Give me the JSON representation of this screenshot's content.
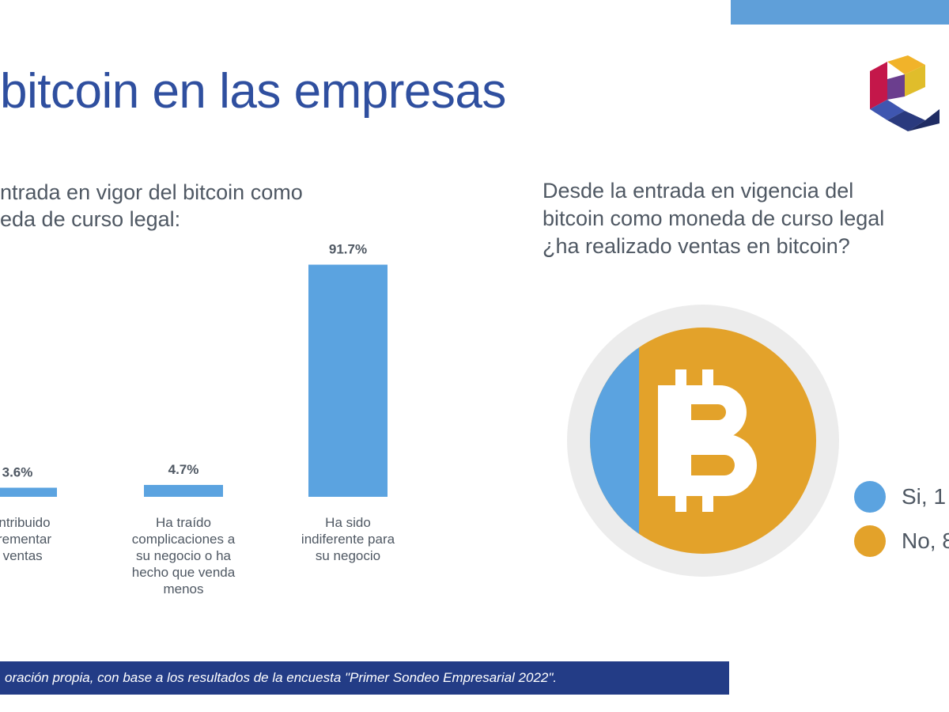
{
  "header": {
    "title": "bitcoin en las empresas"
  },
  "left_chart": {
    "question_lines": [
      "ntrada en vigor del bitcoin como",
      "eda de curso legal:"
    ]
  },
  "right_chart": {
    "question_lines": [
      "Desde la entrada en vigencia del",
      "bitcoin como moneda de curso legal",
      "¿ha realizado ventas en bitcoin?"
    ]
  },
  "chart_data": [
    {
      "type": "bar",
      "categories": [
        "Ha contribuido a incrementar sus ventas",
        "Ha traído complicaciones a su negocio o ha hecho que venda menos",
        "Ha sido indiferente para su negocio"
      ],
      "category_label_lines": [
        [
          "contribuido",
          "ncrementar",
          "s ventas"
        ],
        [
          "Ha traído",
          "complicaciones a",
          "su negocio o ha",
          "hecho que venda",
          "menos"
        ],
        [
          "Ha sido",
          "indiferente para",
          "su negocio"
        ]
      ],
      "values": [
        3.6,
        4.7,
        91.7
      ],
      "value_labels": [
        "3.6%",
        "4.7%",
        "91.7%"
      ],
      "ylim": [
        0,
        100
      ],
      "grid": false,
      "color": "#5ba3e0"
    },
    {
      "type": "pie",
      "labels": [
        "Si, 1",
        "No, 8"
      ],
      "values": [
        16,
        84
      ],
      "colors": [
        "#5ba3e0",
        "#e3a22a"
      ],
      "legend_position": "right",
      "center_icon": "bitcoin-icon"
    }
  ],
  "footer": {
    "source": "oración propia, con base a los resultados de la encuesta \"Primer Sondeo Empresarial 2022\"."
  },
  "colors": {
    "title_blue": "#2f4f9f",
    "footer_bg": "#233c86",
    "top_band": "#5f9fd9"
  }
}
